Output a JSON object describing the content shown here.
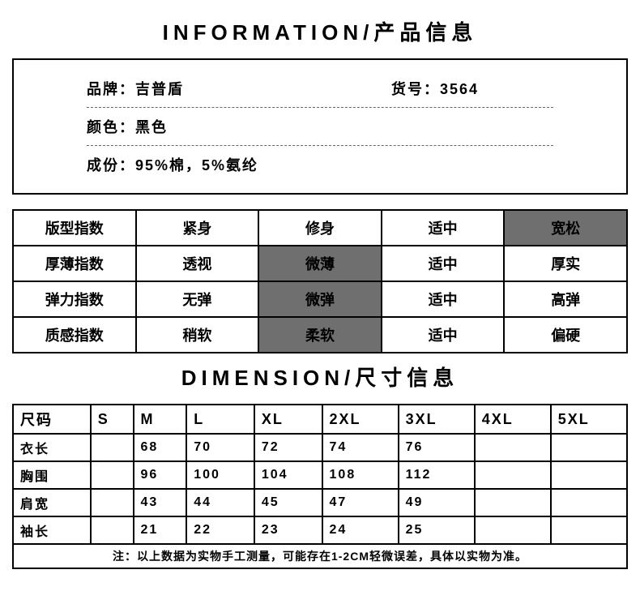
{
  "section1_title": "INFORMATION/产品信息",
  "info": {
    "brand_label": "品牌：",
    "brand_value": "吉普盾",
    "sku_label": "货号：",
    "sku_value": "3564",
    "color_label": "颜色：",
    "color_value": "黑色",
    "material_label": "成份：",
    "material_value": "95%棉，5%氨纶"
  },
  "index_table": {
    "rows": [
      {
        "label": "版型指数",
        "cells": [
          "紧身",
          "修身",
          "适中",
          "宽松"
        ],
        "highlight": 3
      },
      {
        "label": "厚薄指数",
        "cells": [
          "透视",
          "微薄",
          "适中",
          "厚实"
        ],
        "highlight": 1
      },
      {
        "label": "弹力指数",
        "cells": [
          "无弹",
          "微弹",
          "适中",
          "高弹"
        ],
        "highlight": 1
      },
      {
        "label": "质感指数",
        "cells": [
          "稍软",
          "柔软",
          "适中",
          "偏硬"
        ],
        "highlight": 1
      }
    ]
  },
  "section2_title": "DIMENSION/尺寸信息",
  "size_table": {
    "headers": [
      "尺码",
      "S",
      "M",
      "L",
      "XL",
      "2XL",
      "3XL",
      "4XL",
      "5XL"
    ],
    "rows": [
      {
        "label": "衣长",
        "values": [
          "",
          "68",
          "70",
          "72",
          "74",
          "76",
          "",
          ""
        ]
      },
      {
        "label": "胸围",
        "values": [
          "",
          "96",
          "100",
          "104",
          "108",
          "112",
          "",
          ""
        ]
      },
      {
        "label": "肩宽",
        "values": [
          "",
          "43",
          "44",
          "45",
          "47",
          "49",
          "",
          ""
        ]
      },
      {
        "label": "袖长",
        "values": [
          "",
          "21",
          "22",
          "23",
          "24",
          "25",
          "",
          ""
        ]
      }
    ],
    "note": "注：以上数据为实物手工测量，可能存在1-2CM轻微误差，具体以实物为准。"
  },
  "colors": {
    "highlight_bg": "#6f6f6f",
    "border": "#000000",
    "text": "#000000",
    "background": "#ffffff"
  }
}
